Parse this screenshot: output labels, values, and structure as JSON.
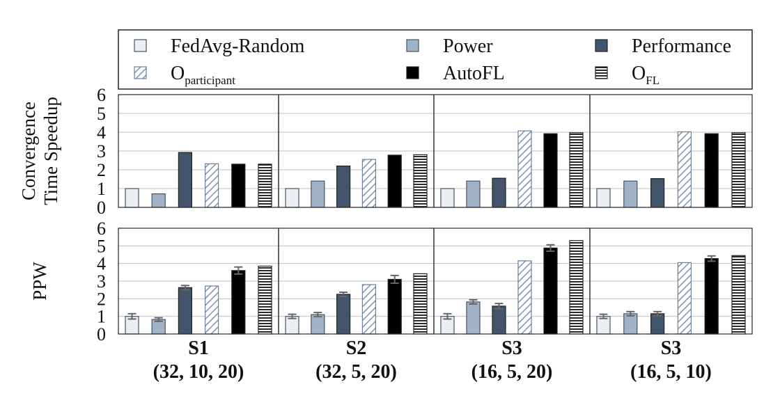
{
  "chart_data": {
    "type": "bar",
    "legend": {
      "placement": "top",
      "items": [
        {
          "key": "fedavg",
          "label": "FedAvg-Random",
          "sub": ""
        },
        {
          "key": "power",
          "label": "Power",
          "sub": ""
        },
        {
          "key": "performance",
          "label": "Performance",
          "sub": ""
        },
        {
          "key": "oparticipant",
          "label": "O",
          "sub": "participant"
        },
        {
          "key": "autofl",
          "label": "AutoFL",
          "sub": ""
        },
        {
          "key": "ofl",
          "label": "O",
          "sub": "FL"
        }
      ]
    },
    "series_styles": [
      {
        "key": "fedavg",
        "fill": "#ebeef3",
        "pattern": "none"
      },
      {
        "key": "power",
        "fill": "#a3b3c6",
        "pattern": "none"
      },
      {
        "key": "performance",
        "fill": "#44546a",
        "pattern": "none"
      },
      {
        "key": "oparticipant",
        "fill": "#ffffff",
        "pattern": "diagonal",
        "stroke": "#7b93b0"
      },
      {
        "key": "autofl",
        "fill": "#000000",
        "pattern": "none"
      },
      {
        "key": "ofl",
        "fill": "#ffffff",
        "pattern": "horizontal",
        "stroke": "#111111"
      }
    ],
    "groups": [
      {
        "line1": "S1",
        "line2": "(32, 10, 20)"
      },
      {
        "line1": "S2",
        "line2": "(32, 5, 20)"
      },
      {
        "line1": "S3",
        "line2": "(16, 5, 20)"
      },
      {
        "line1": "S3",
        "line2": "(16, 5, 10)"
      }
    ],
    "ylim": [
      0,
      6
    ],
    "yticks": [
      "0",
      "1",
      "2",
      "3",
      "4",
      "5",
      "6"
    ],
    "grid": true,
    "rows": [
      {
        "ylabel_lines": [
          "Convergence",
          "Time Speedup"
        ],
        "values": [
          [
            1.0,
            0.72,
            2.92,
            2.32,
            2.3,
            2.3
          ],
          [
            1.0,
            1.4,
            2.2,
            2.55,
            2.78,
            2.8
          ],
          [
            1.0,
            1.4,
            1.55,
            4.07,
            3.92,
            3.97
          ],
          [
            1.0,
            1.4,
            1.53,
            4.02,
            3.92,
            3.97
          ]
        ],
        "errors": [
          [
            0,
            0,
            0,
            0,
            0,
            0
          ],
          [
            0,
            0,
            0,
            0,
            0,
            0
          ],
          [
            0,
            0,
            0,
            0,
            0,
            0
          ],
          [
            0,
            0,
            0,
            0,
            0,
            0
          ]
        ]
      },
      {
        "ylabel_lines": [
          "PPW"
        ],
        "values": [
          [
            1.0,
            0.82,
            2.63,
            2.72,
            3.6,
            3.85
          ],
          [
            1.0,
            1.1,
            2.25,
            2.8,
            3.1,
            3.42
          ],
          [
            1.0,
            1.82,
            1.58,
            4.15,
            4.88,
            5.3
          ],
          [
            1.0,
            1.15,
            1.15,
            4.05,
            4.28,
            4.45
          ]
        ],
        "errors": [
          [
            0.15,
            0.1,
            0.12,
            0,
            0.2,
            0
          ],
          [
            0.12,
            0.12,
            0.12,
            0,
            0.22,
            0
          ],
          [
            0.15,
            0.12,
            0.15,
            0,
            0.18,
            0
          ],
          [
            0.12,
            0.12,
            0.12,
            0,
            0.15,
            0
          ]
        ]
      }
    ]
  }
}
